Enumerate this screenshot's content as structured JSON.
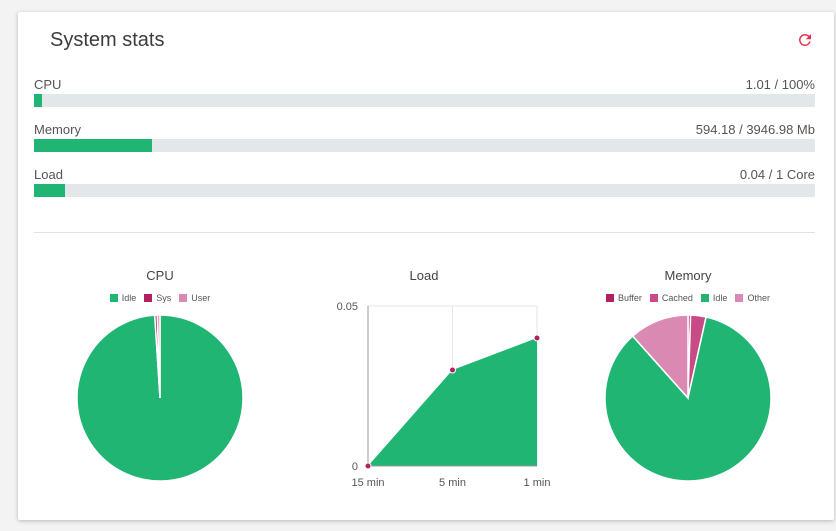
{
  "card": {
    "title": "System stats",
    "refresh_icon": "refresh-icon"
  },
  "stats": [
    {
      "label": "CPU",
      "value": "1.01 / 100%",
      "fraction": 0.0101
    },
    {
      "label": "Memory",
      "value": "594.18 / 3946.98 Mb",
      "fraction": 0.1505
    },
    {
      "label": "Load",
      "value": "0.04 / 1 Core",
      "fraction": 0.04
    }
  ],
  "colors": {
    "accent": "#21b573",
    "track": "#e4e7ea",
    "sys": "#b1205f",
    "user": "#d989b2",
    "buffer": "#b1205f",
    "cached": "#c94b86",
    "other": "#d989b2",
    "refresh": "#e0334c"
  },
  "chart_data": [
    {
      "type": "pie",
      "title": "CPU",
      "series": [
        {
          "name": "Idle",
          "value": 98.99
        },
        {
          "name": "Sys",
          "value": 0.5
        },
        {
          "name": "User",
          "value": 0.51
        }
      ]
    },
    {
      "type": "area",
      "title": "Load",
      "x": [
        "15 min",
        "5 min",
        "1 min"
      ],
      "values": [
        0.0,
        0.03,
        0.04
      ],
      "ylim": [
        0,
        0.05
      ],
      "yticks": [
        "0",
        "0.05"
      ],
      "grid": true
    },
    {
      "type": "pie",
      "title": "Memory",
      "series": [
        {
          "name": "Buffer",
          "value": 0.5
        },
        {
          "name": "Cached",
          "value": 3.0
        },
        {
          "name": "Idle",
          "value": 84.9
        },
        {
          "name": "Other",
          "value": 11.6
        }
      ]
    }
  ]
}
